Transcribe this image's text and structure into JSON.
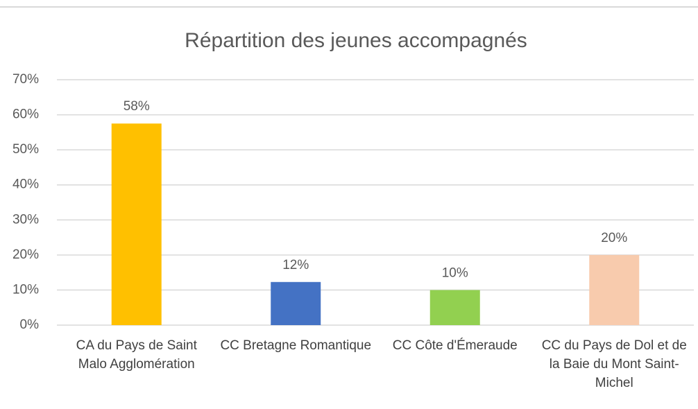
{
  "chart_data": {
    "type": "bar",
    "title": "Répartition des jeunes accompagnés",
    "categories": [
      "CA du Pays de Saint Malo Agglomération",
      "CC Bretagne Romantique",
      "CC Côte d'Émeraude",
      "CC du Pays de Dol et de la Baie du Mont Saint-Michel"
    ],
    "values": [
      57.5,
      12.3,
      10,
      20
    ],
    "value_labels": [
      "58%",
      "12%",
      "10%",
      "20%"
    ],
    "colors": [
      "#ffc000",
      "#4472c4",
      "#92d050",
      "#f8cbad"
    ],
    "ylim": [
      0,
      70
    ],
    "yticks": [
      {
        "value": 0,
        "label": "0%"
      },
      {
        "value": 10,
        "label": "10%"
      },
      {
        "value": 20,
        "label": "20%"
      },
      {
        "value": 30,
        "label": "30%"
      },
      {
        "value": 40,
        "label": "40%"
      },
      {
        "value": 50,
        "label": "50%"
      },
      {
        "value": 60,
        "label": "60%"
      },
      {
        "value": 70,
        "label": "70%"
      }
    ],
    "grid": true
  }
}
